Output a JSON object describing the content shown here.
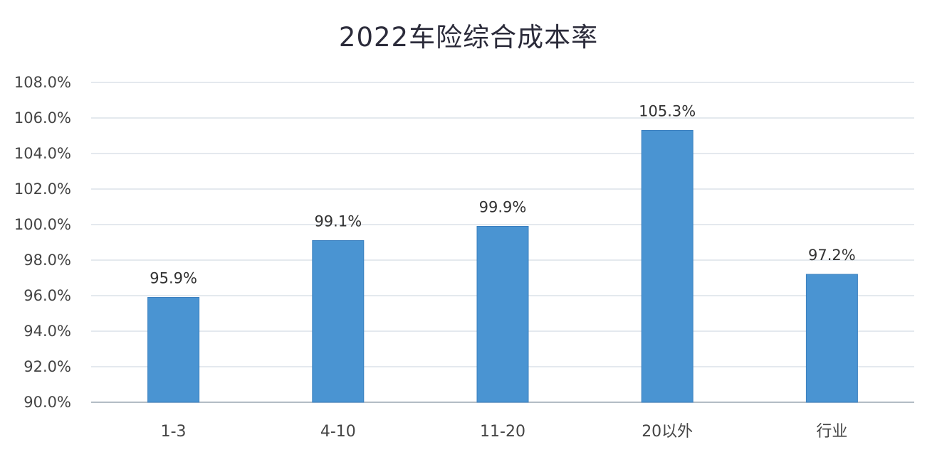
{
  "chart_data": {
    "type": "bar",
    "title": "2022车险综合成本率",
    "xlabel": "",
    "ylabel": "",
    "categories": [
      "1-3",
      "4-10",
      "11-20",
      "20以外",
      "行业"
    ],
    "values": [
      95.9,
      99.1,
      99.9,
      105.3,
      97.2
    ],
    "data_labels": [
      "95.9%",
      "99.1%",
      "99.9%",
      "105.3%",
      "97.2%"
    ],
    "ylim": [
      90,
      108
    ],
    "yticks": [
      90,
      92,
      94,
      96,
      98,
      100,
      102,
      104,
      106,
      108
    ],
    "ytick_labels": [
      "90.0%",
      "92.0%",
      "94.0%",
      "96.0%",
      "98.0%",
      "100.0%",
      "102.0%",
      "104.0%",
      "106.0%",
      "108.0%"
    ],
    "grid": true,
    "legend": "none",
    "colors": {
      "bar": "#4a94d2",
      "bar_edge": "#3a7fbf",
      "grid": "#c9d3dc",
      "axis": "#9aa6b2"
    }
  }
}
